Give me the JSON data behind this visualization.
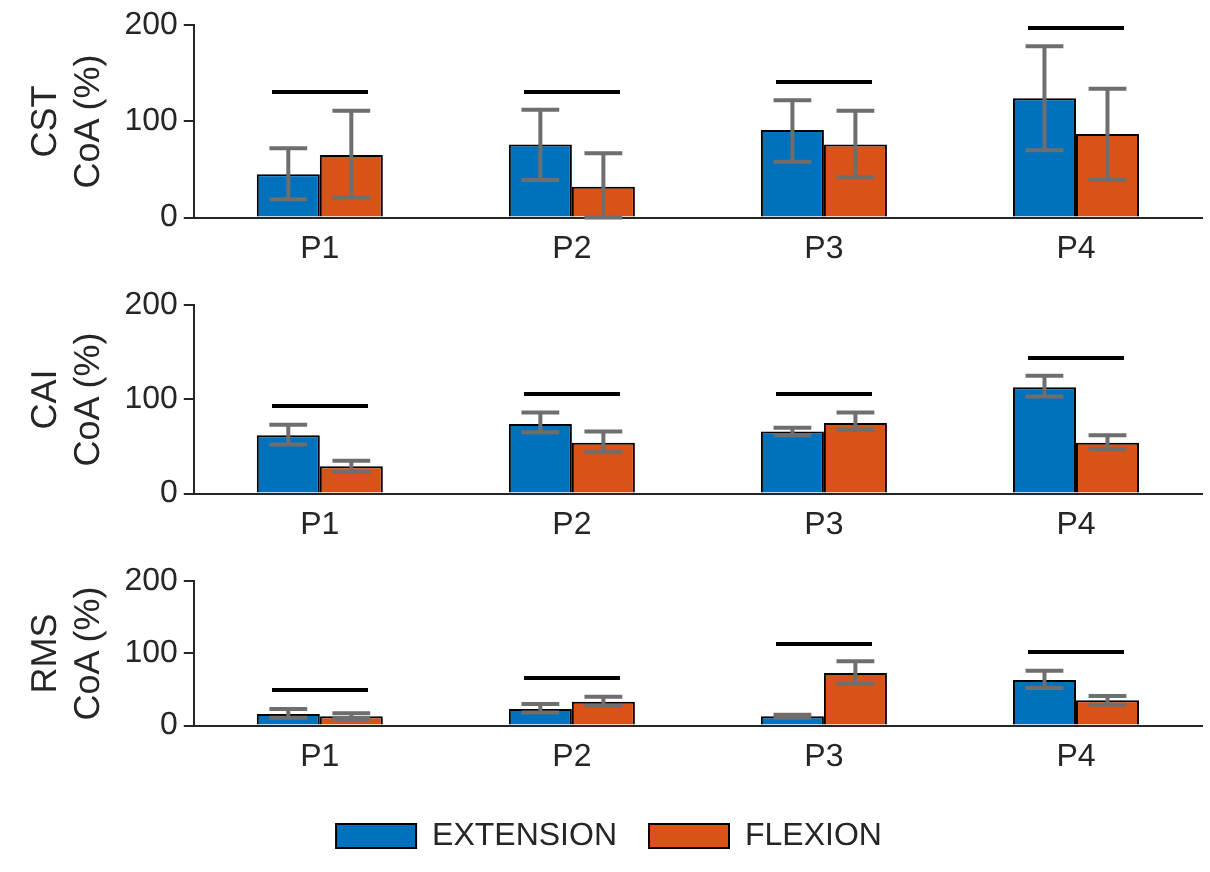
{
  "chart_data": [
    {
      "type": "bar",
      "ylabel": "CST\nCoA (%)",
      "categories": [
        "P1",
        "P2",
        "P3",
        "P4"
      ],
      "ylim": [
        0,
        200
      ],
      "yticks": [
        0,
        100,
        200
      ],
      "grid": false,
      "legend": false,
      "series": [
        {
          "color": "#0072bd",
          "values": [
            45,
            76,
            91,
            124
          ],
          "errors": [
            [
              19,
              72
            ],
            [
              39,
              112
            ],
            [
              58,
              122
            ],
            [
              70,
              178
            ]
          ]
        },
        {
          "color": "#d95319",
          "values": [
            65,
            32,
            76,
            87
          ],
          "errors": [
            [
              21,
              111
            ],
            [
              0,
              67
            ],
            [
              42,
              111
            ],
            [
              39,
              134
            ]
          ]
        }
      ]
    },
    {
      "type": "bar",
      "ylabel": "CAI\nCoA (%)",
      "categories": [
        "P1",
        "P2",
        "P3",
        "P4"
      ],
      "ylim": [
        0,
        200
      ],
      "yticks": [
        0,
        100,
        200
      ],
      "grid": false,
      "legend": false,
      "series": [
        {
          "color": "#0072bd",
          "values": [
            62,
            74,
            66,
            113
          ],
          "errors": [
            [
              52,
              73
            ],
            [
              65,
              86
            ],
            [
              62,
              70
            ],
            [
              103,
              125
            ]
          ]
        },
        {
          "color": "#d95319",
          "values": [
            29,
            54,
            75,
            54
          ],
          "errors": [
            [
              23,
              35
            ],
            [
              44,
              66
            ],
            [
              68,
              86
            ],
            [
              47,
              62
            ]
          ]
        }
      ]
    },
    {
      "type": "bar",
      "ylabel": "RMS\nCoA (%)",
      "categories": [
        "P1",
        "P2",
        "P3",
        "P4"
      ],
      "ylim": [
        0,
        200
      ],
      "yticks": [
        0,
        100,
        200
      ],
      "grid": false,
      "legend": "bottom",
      "series": [
        {
          "name": "EXTENSION",
          "color": "#0072bd",
          "values": [
            16,
            23,
            13,
            63
          ],
          "errors": [
            [
              11,
              23
            ],
            [
              18,
              30
            ],
            [
              11,
              15
            ],
            [
              52,
              76
            ]
          ]
        },
        {
          "name": "FLEXION",
          "color": "#d95319",
          "values": [
            13,
            33,
            73,
            35
          ],
          "errors": [
            [
              9,
              17
            ],
            [
              27,
              40
            ],
            [
              58,
              89
            ],
            [
              29,
              41
            ]
          ]
        }
      ]
    }
  ]
}
